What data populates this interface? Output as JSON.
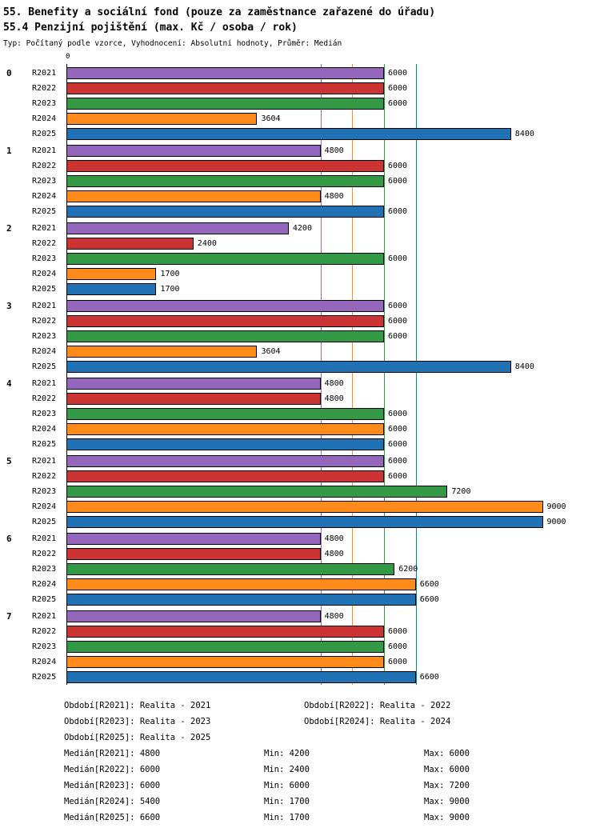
{
  "title_line1": "55. Benefity a sociální fond (pouze za zaměstnance zařazené do úřadu)",
  "title_line2": "55.4 Penzijní pojištění (max. Kč / osoba / rok)",
  "subtitle": "Typ: Počítaný podle vzorce, Vyhodnocení: Absolutní hodnoty, Průměr: Medián",
  "axis": {
    "zero_label": "0"
  },
  "chart_data": {
    "type": "bar",
    "orientation": "horizontal",
    "xlim": [
      0,
      9400
    ],
    "grid": false,
    "series_labels": [
      "R2021",
      "R2022",
      "R2023",
      "R2024",
      "R2025"
    ],
    "series_colors": [
      "#9467bd",
      "#cc3333",
      "#339944",
      "#ff8c1a",
      "#2171b5"
    ],
    "groups": [
      {
        "label": "0",
        "values": [
          6000,
          6000,
          6000,
          3604,
          8400
        ]
      },
      {
        "label": "1",
        "values": [
          4800,
          6000,
          6000,
          4800,
          6000
        ]
      },
      {
        "label": "2",
        "values": [
          4200,
          2400,
          6000,
          1700,
          1700
        ]
      },
      {
        "label": "3",
        "values": [
          6000,
          6000,
          6000,
          3604,
          8400
        ]
      },
      {
        "label": "4",
        "values": [
          4800,
          4800,
          6000,
          6000,
          6000
        ]
      },
      {
        "label": "5",
        "values": [
          6000,
          6000,
          7200,
          9000,
          9000
        ]
      },
      {
        "label": "6",
        "values": [
          4800,
          4800,
          6200,
          6600,
          6600
        ]
      },
      {
        "label": "7",
        "values": [
          4800,
          6000,
          6000,
          6000,
          6600
        ]
      }
    ],
    "reference_lines": [
      {
        "name": "median-R2021",
        "value": 4800,
        "color": "#9467bd"
      },
      {
        "name": "median-R2022",
        "value": 6000,
        "color": "#cc3333"
      },
      {
        "name": "median-R2023",
        "value": 6000,
        "color": "#339944"
      },
      {
        "name": "median-R2024",
        "value": 5400,
        "color": "#ff8c1a"
      },
      {
        "name": "median-R2025",
        "value": 6600,
        "color": "#008b8b"
      }
    ]
  },
  "legend": {
    "periods": [
      "Období[R2021]: Realita - 2021",
      "Období[R2022]: Realita - 2022",
      "Období[R2023]: Realita - 2023",
      "Období[R2024]: Realita - 2024",
      "Období[R2025]: Realita - 2025"
    ],
    "stats": [
      {
        "median": "Medián[R2021]: 4800",
        "min": "Min: 4200",
        "max": "Max: 6000"
      },
      {
        "median": "Medián[R2022]: 6000",
        "min": "Min: 2400",
        "max": "Max: 6000"
      },
      {
        "median": "Medián[R2023]: 6000",
        "min": "Min: 6000",
        "max": "Max: 7200"
      },
      {
        "median": "Medián[R2024]: 5400",
        "min": "Min: 1700",
        "max": "Max: 9000"
      },
      {
        "median": "Medián[R2025]: 6600",
        "min": "Min: 1700",
        "max": "Max: 9000"
      }
    ]
  }
}
